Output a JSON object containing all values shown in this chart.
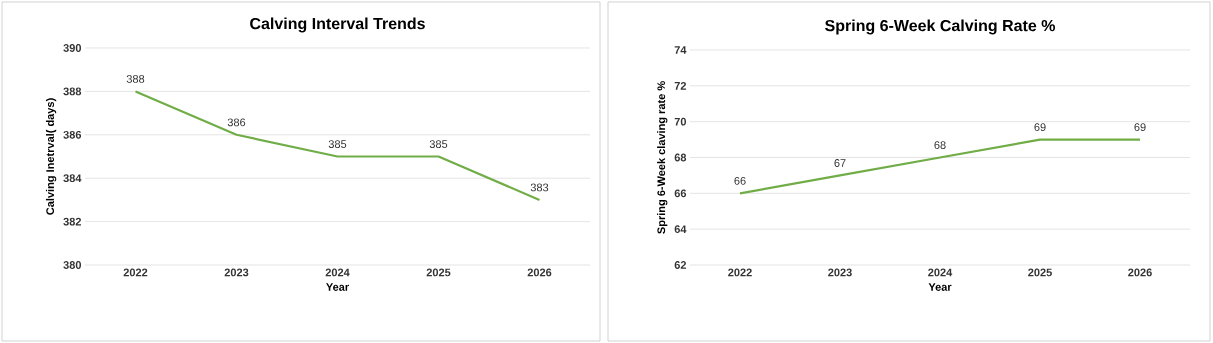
{
  "chart_data": [
    {
      "type": "line",
      "title": "Calving Interval Trends",
      "xlabel": "Year",
      "ylabel": "Calving Inetrval( days)",
      "categories": [
        "2022",
        "2023",
        "2024",
        "2025",
        "2026"
      ],
      "values": [
        388,
        386,
        385,
        385,
        383
      ],
      "color": "#70ad47",
      "ylim": [
        380,
        390
      ],
      "yticks": [
        380,
        382,
        384,
        386,
        388,
        390
      ],
      "grid": "y",
      "data_labels": true
    },
    {
      "type": "line",
      "title": "Spring 6-Week Calving Rate %",
      "xlabel": "Year",
      "ylabel": "Spring 6-Week claving rate %",
      "categories": [
        "2022",
        "2023",
        "2024",
        "2025",
        "2026"
      ],
      "values": [
        66,
        67,
        68,
        69,
        69
      ],
      "color": "#70ad47",
      "ylim": [
        62,
        74
      ],
      "yticks": [
        62,
        64,
        66,
        68,
        70,
        72,
        74
      ],
      "grid": "y",
      "data_labels": true
    }
  ]
}
